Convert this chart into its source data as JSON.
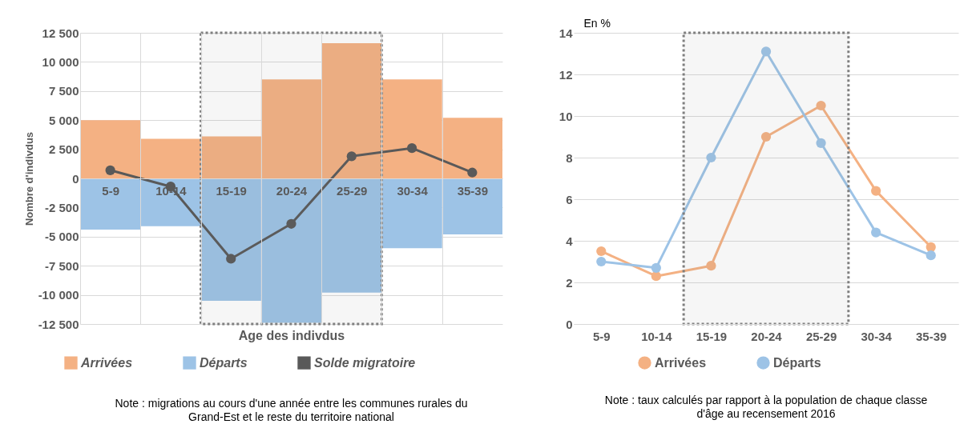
{
  "chart_data": [
    {
      "type": "bar",
      "xlabel": "Age des indivdus",
      "ylabel": "Nombre d'indivdus",
      "categories": [
        "5-9",
        "10-14",
        "15-19",
        "20-24",
        "25-29",
        "30-34",
        "35-39"
      ],
      "series": [
        {
          "name": "Arrivées",
          "color": "#f4b183",
          "values": [
            5000,
            3400,
            3600,
            8500,
            11600,
            8500,
            5200
          ]
        },
        {
          "name": "Départs",
          "color": "#9dc3e6",
          "values": [
            -4400,
            -4100,
            -10500,
            -12400,
            -9800,
            -6000,
            -4800
          ]
        },
        {
          "name": "Solde migratoire",
          "type": "line",
          "color": "#595959",
          "values": [
            700,
            -700,
            -6900,
            -3900,
            1900,
            2600,
            500
          ]
        }
      ],
      "stacked": true,
      "marker": "circle",
      "line_style": "solid",
      "ylim": [
        -12500,
        12500
      ],
      "yticks": [
        {
          "value": -12500,
          "label": "-12 500"
        },
        {
          "value": -10000,
          "label": "-10 000"
        },
        {
          "value": -7500,
          "label": "-7 500"
        },
        {
          "value": -5000,
          "label": "-5 000"
        },
        {
          "value": -2500,
          "label": "-2 500"
        },
        0,
        {
          "value": 2500,
          "label": "2 500"
        },
        {
          "value": 5000,
          "label": "5 000"
        },
        {
          "value": 7500,
          "label": "7 500"
        },
        {
          "value": 10000,
          "label": "10 000"
        },
        {
          "value": 12500,
          "label": "12 500"
        }
      ],
      "grid": true,
      "legend": "bottom",
      "bands": [
        {
          "axis": "x",
          "from": "15-19",
          "to": "25-29",
          "color": "#7f7f7f"
        }
      ],
      "annotations": [
        "Note : migrations au cours d'une année entre les communes rurales du Grand-Est et le reste du territoire national"
      ]
    },
    {
      "type": "line",
      "ylabel": "En %",
      "categories": [
        "5-9",
        "10-14",
        "15-19",
        "20-24",
        "25-29",
        "30-34",
        "35-39"
      ],
      "series": [
        {
          "name": "Arrivées",
          "color": "#f4b183",
          "values": [
            3.5,
            2.3,
            2.8,
            9.0,
            10.5,
            6.4,
            3.7
          ]
        },
        {
          "name": "Départs",
          "color": "#9dc3e6",
          "values": [
            3.0,
            2.7,
            8.0,
            13.1,
            8.7,
            4.4,
            3.3
          ]
        }
      ],
      "marker": "circle",
      "line_style": "solid",
      "ylim": [
        0,
        14
      ],
      "yticks": [
        0,
        2,
        4,
        6,
        8,
        10,
        12,
        14
      ],
      "grid": "y",
      "legend": "bottom",
      "bands": [
        {
          "axis": "x",
          "from": "15-19",
          "to": "25-29",
          "color": "#7f7f7f"
        }
      ],
      "annotations": [
        "Note : taux calculés par rapport à la population de chaque classe d'âge au recensement 2016"
      ]
    }
  ]
}
